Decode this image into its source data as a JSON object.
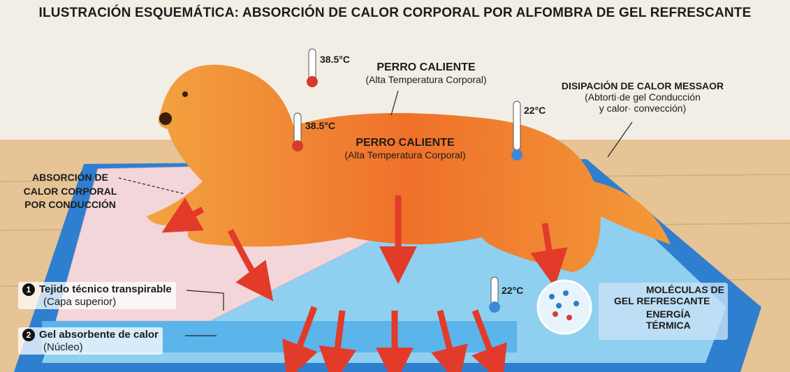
{
  "title": "ILUSTRACIÓN ESQUEMÁTICA: ABSORCIÓN DE CALOR CORPORAL POR ALFOMBRA DE GEL REFRESCANTE",
  "labels": {
    "temp_top": "38.5°C",
    "temp_mid": "38.5°C",
    "temp_back": "22°C",
    "temp_mat": "22°C",
    "dog_top_title": "PERRO CALIENTE",
    "dog_top_sub": "(Alta Temperatura Corporal)",
    "dog_mid_title": "PERRO CALIENTE",
    "dog_mid_sub": "(Alta Temperatura Corporal)",
    "dissipation_title": "DISIPACIÓN DE CALOR MESSAOR",
    "dissipation_sub1": "(Abtorti·de gel Conducción",
    "dissipation_sub2": "y calor· convección)",
    "absorption_1": "ABSORCIÓN DE",
    "absorption_2": "CALOR CORPORAL",
    "absorption_3": "POR CONDUCCIÓN",
    "layer1_num": "1",
    "layer1_title": "Tejido técnico transpirable",
    "layer1_sub": "(Capa superior)",
    "layer2_num": "2",
    "layer2_title": "Gel absorbente de calor",
    "layer2_sub": "(Núcleo)",
    "molecules_1": "MOLÉCULAS DE",
    "molecules_2": "GEL REFRESCANTE",
    "energy_1": "ENERGÍA",
    "energy_2": "TÉRMICA"
  },
  "colors": {
    "mat": "#2f7fd0",
    "gel": "#8fd0f0",
    "dog": "#f08a2a",
    "arrow": "#e23b2a",
    "fabric": "#f3d6da"
  }
}
